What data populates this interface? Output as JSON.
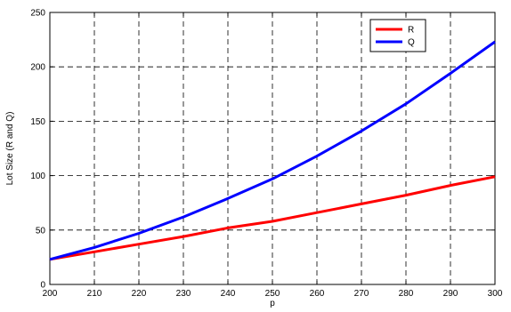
{
  "chart_data": {
    "type": "line",
    "title": "",
    "xlabel": "p",
    "ylabel": "Lot Size (R and Q)",
    "xlim": [
      200,
      300
    ],
    "ylim": [
      0,
      250
    ],
    "xticks": [
      200,
      210,
      220,
      230,
      240,
      250,
      260,
      270,
      280,
      290,
      300
    ],
    "yticks": [
      0,
      50,
      100,
      150,
      200,
      250
    ],
    "grid": true,
    "legend_position": "top-right",
    "x": [
      200,
      210,
      220,
      230,
      240,
      250,
      260,
      270,
      280,
      290,
      300
    ],
    "series": [
      {
        "name": "R",
        "color": "#ff0000",
        "values": [
          23,
          30,
          37,
          44,
          52,
          58,
          66,
          74,
          82,
          91,
          99
        ]
      },
      {
        "name": "Q",
        "color": "#0000ff",
        "values": [
          23,
          34,
          47,
          62,
          79,
          97,
          118,
          141,
          166,
          194,
          223
        ]
      }
    ]
  }
}
